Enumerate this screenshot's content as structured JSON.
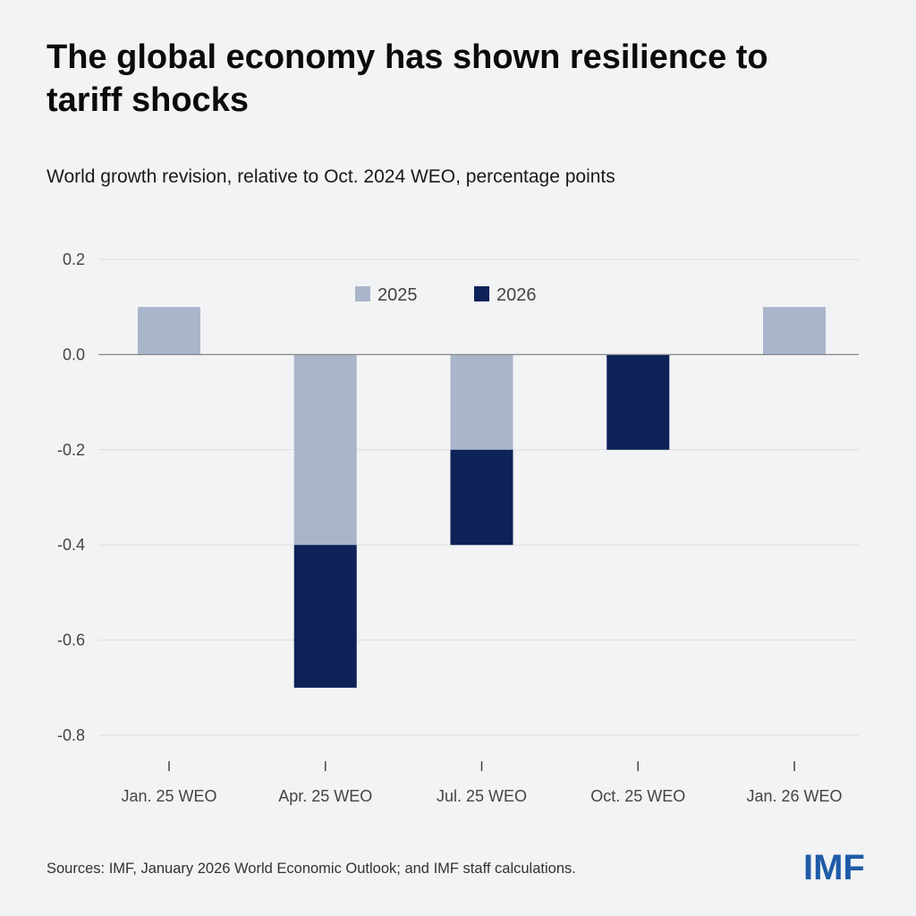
{
  "header": {
    "title": "The global economy has shown resilience to tariff shocks",
    "subtitle": "World growth revision, relative to Oct. 2024 WEO, percentage points"
  },
  "footer": {
    "source": "Sources: IMF, January 2026 World Economic Outlook; and IMF staff calculations.",
    "logo": "IMF"
  },
  "colors": {
    "series_2025": "#a9b5ca",
    "series_2026": "#0d2257",
    "grid": "#dcdde0",
    "zero_line": "#888888"
  },
  "chart_data": {
    "type": "bar",
    "stacked": true,
    "title": "The global economy has shown resilience to tariff shocks",
    "subtitle": "World growth revision, relative to Oct. 2024 WEO, percentage points",
    "categories": [
      "Jan. 25 WEO",
      "Apr. 25 WEO",
      "Jul. 25 WEO",
      "Oct. 25 WEO",
      "Jan. 26 WEO"
    ],
    "series": [
      {
        "name": "2025",
        "values": [
          0.1,
          -0.4,
          -0.2,
          0.0,
          0.1
        ]
      },
      {
        "name": "2026",
        "values": [
          0.0,
          -0.3,
          -0.2,
          -0.2,
          0.0
        ]
      }
    ],
    "ylim": [
      -0.8,
      0.2
    ],
    "yticks": [
      "0.2",
      "0.0",
      "-0.2",
      "-0.4",
      "-0.6",
      "-0.8"
    ],
    "grid": true,
    "legend": "top-center",
    "xlabel": "",
    "ylabel": ""
  }
}
